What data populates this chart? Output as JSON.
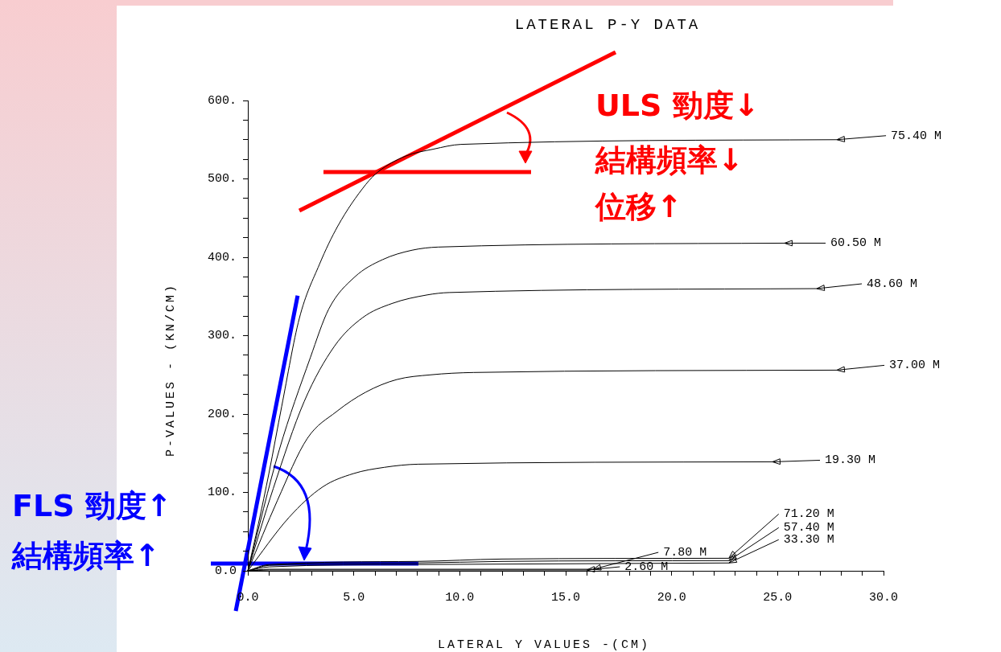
{
  "chart_data": {
    "type": "line",
    "title": "LATERAL P-Y DATA",
    "xlabel": "LATERAL Y VALUES -(CM)",
    "ylabel": "P-VALUES  -  (KN/CM)",
    "xlim": [
      0,
      30
    ],
    "ylim": [
      0,
      600
    ],
    "marker": "none",
    "line_style": "solid",
    "legend": "right",
    "xticks": [
      {
        "value": 0,
        "label": "0.0"
      },
      {
        "value": 1,
        "label": null
      },
      {
        "value": 2,
        "label": null
      },
      {
        "value": 3,
        "label": null
      },
      {
        "value": 4,
        "label": null
      },
      {
        "value": 5,
        "label": "5.0"
      },
      {
        "value": 6,
        "label": null
      },
      {
        "value": 7,
        "label": null
      },
      {
        "value": 8,
        "label": null
      },
      {
        "value": 9,
        "label": null
      },
      {
        "value": 10,
        "label": "10.0"
      },
      {
        "value": 11,
        "label": null
      },
      {
        "value": 12,
        "label": null
      },
      {
        "value": 13,
        "label": null
      },
      {
        "value": 14,
        "label": null
      },
      {
        "value": 15,
        "label": "15.0"
      },
      {
        "value": 16,
        "label": null
      },
      {
        "value": 17,
        "label": null
      },
      {
        "value": 18,
        "label": null
      },
      {
        "value": 19,
        "label": null
      },
      {
        "value": 20,
        "label": "20.0"
      },
      {
        "value": 21,
        "label": null
      },
      {
        "value": 22,
        "label": null
      },
      {
        "value": 23,
        "label": null
      },
      {
        "value": 24,
        "label": null
      },
      {
        "value": 25,
        "label": "25.0"
      },
      {
        "value": 26,
        "label": null
      },
      {
        "value": 27,
        "label": null
      },
      {
        "value": 28,
        "label": null
      },
      {
        "value": 29,
        "label": null
      },
      {
        "value": 30,
        "label": "30.0"
      }
    ],
    "yticks": [
      {
        "value": 0,
        "label": "0.0"
      },
      {
        "value": 25,
        "label": null
      },
      {
        "value": 50,
        "label": null
      },
      {
        "value": 75,
        "label": null
      },
      {
        "value": 100,
        "label": "100."
      },
      {
        "value": 125,
        "label": null
      },
      {
        "value": 150,
        "label": null
      },
      {
        "value": 175,
        "label": null
      },
      {
        "value": 200,
        "label": "200."
      },
      {
        "value": 225,
        "label": null
      },
      {
        "value": 250,
        "label": null
      },
      {
        "value": 275,
        "label": null
      },
      {
        "value": 300,
        "label": "300."
      },
      {
        "value": 325,
        "label": null
      },
      {
        "value": 350,
        "label": null
      },
      {
        "value": 375,
        "label": null
      },
      {
        "value": 400,
        "label": "400."
      },
      {
        "value": 425,
        "label": null
      },
      {
        "value": 450,
        "label": null
      },
      {
        "value": 475,
        "label": null
      },
      {
        "value": 500,
        "label": "500."
      },
      {
        "value": 525,
        "label": null
      },
      {
        "value": 550,
        "label": null
      },
      {
        "value": 575,
        "label": null
      },
      {
        "value": 600,
        "label": "600."
      }
    ],
    "series": [
      {
        "name": "75.40 M",
        "color": "#000000",
        "x": [
          0,
          0.5,
          1,
          1.6,
          2.43,
          3.38,
          4.25,
          5.57,
          6.15,
          7.44,
          8.77,
          10.06,
          27.8
        ],
        "values": [
          0,
          60,
          125,
          210,
          322,
          391,
          440,
          493,
          509,
          529,
          538,
          544,
          550
        ]
      },
      {
        "name": "60.50 M",
        "color": "#000000",
        "x": [
          0,
          1.48,
          2.95,
          3.82,
          5.05,
          6.36,
          7.75,
          8.98,
          25.33
        ],
        "values": [
          0,
          154,
          272,
          334,
          375,
          397,
          409,
          413,
          418
        ]
      },
      {
        "name": "48.60 M",
        "color": "#000000",
        "x": [
          0,
          1.2,
          2.66,
          4.1,
          5.42,
          6.8,
          8.47,
          9.5,
          26.85
        ],
        "values": [
          0,
          105,
          216,
          287,
          323,
          341,
          352,
          355,
          360
        ]
      },
      {
        "name": "37.00 M",
        "color": "#000000",
        "x": [
          0,
          1.4,
          2.81,
          4.18,
          5.57,
          7.03,
          8.62,
          10.66,
          27.8
        ],
        "values": [
          0,
          90,
          169,
          203,
          228,
          244,
          250,
          253,
          256
        ]
      },
      {
        "name": "19.30 M",
        "color": "#000000",
        "x": [
          0,
          1.94,
          3.53,
          4.98,
          6.44,
          8.04,
          24.76
        ],
        "values": [
          0,
          68,
          107,
          124,
          132,
          136,
          139
        ]
      },
      {
        "name": "71.20 M",
        "color": "#000000",
        "x": [
          0,
          1,
          8,
          12,
          22.7
        ],
        "values": [
          0,
          8,
          12,
          15,
          16
        ]
      },
      {
        "name": "57.40 M",
        "color": "#000000",
        "x": [
          0,
          1,
          8,
          12,
          22.7
        ],
        "values": [
          0,
          7,
          10,
          12,
          13
        ]
      },
      {
        "name": "33.30 M",
        "color": "#000000",
        "x": [
          0,
          1,
          8,
          22.7
        ],
        "values": [
          0,
          5,
          8,
          10
        ]
      },
      {
        "name": "7.80 M",
        "color": "#000000",
        "x": [
          0,
          1,
          16.3
        ],
        "values": [
          0,
          2,
          2
        ]
      },
      {
        "name": "2.60 M",
        "color": "#000000",
        "x": [
          0,
          1,
          16
        ],
        "values": [
          0,
          1,
          1
        ]
      },
      {
        "color": "#0000ff",
        "x": [
          0,
          2.35
        ],
        "values": [
          27,
          351
        ]
      }
    ],
    "annotations": [
      "ULS  勁度↓",
      "結構頻率↓",
      "位移↑",
      "FLS  勁度↑",
      "結構頻率↑"
    ]
  }
}
